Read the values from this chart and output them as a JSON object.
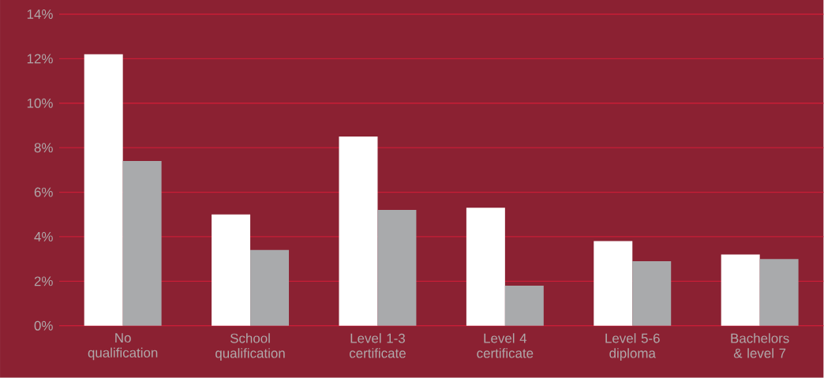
{
  "chart_data": {
    "type": "bar",
    "categories": [
      "No qualification",
      "School qualification",
      "Level 1-3 certificate",
      "Level 4 certificate",
      "Level 5-6 diploma",
      "Bachelors & level 7"
    ],
    "series": [
      {
        "color": "#ffffff",
        "values": [
          12.2,
          5.0,
          8.5,
          5.3,
          3.8,
          3.2
        ]
      },
      {
        "color": "#a9aaac",
        "values": [
          7.4,
          3.4,
          5.2,
          1.8,
          2.9,
          3.0
        ]
      }
    ],
    "ylim": [
      0,
      14
    ],
    "yticks": [
      {
        "value": 0,
        "label": "0%"
      },
      {
        "value": 2,
        "label": "2%"
      },
      {
        "value": 4,
        "label": "4%"
      },
      {
        "value": 6,
        "label": "6%"
      },
      {
        "value": 8,
        "label": "8%"
      },
      {
        "value": 10,
        "label": "10%"
      },
      {
        "value": 12,
        "label": "12%"
      },
      {
        "value": 14,
        "label": "14%"
      }
    ],
    "grid": "y"
  }
}
